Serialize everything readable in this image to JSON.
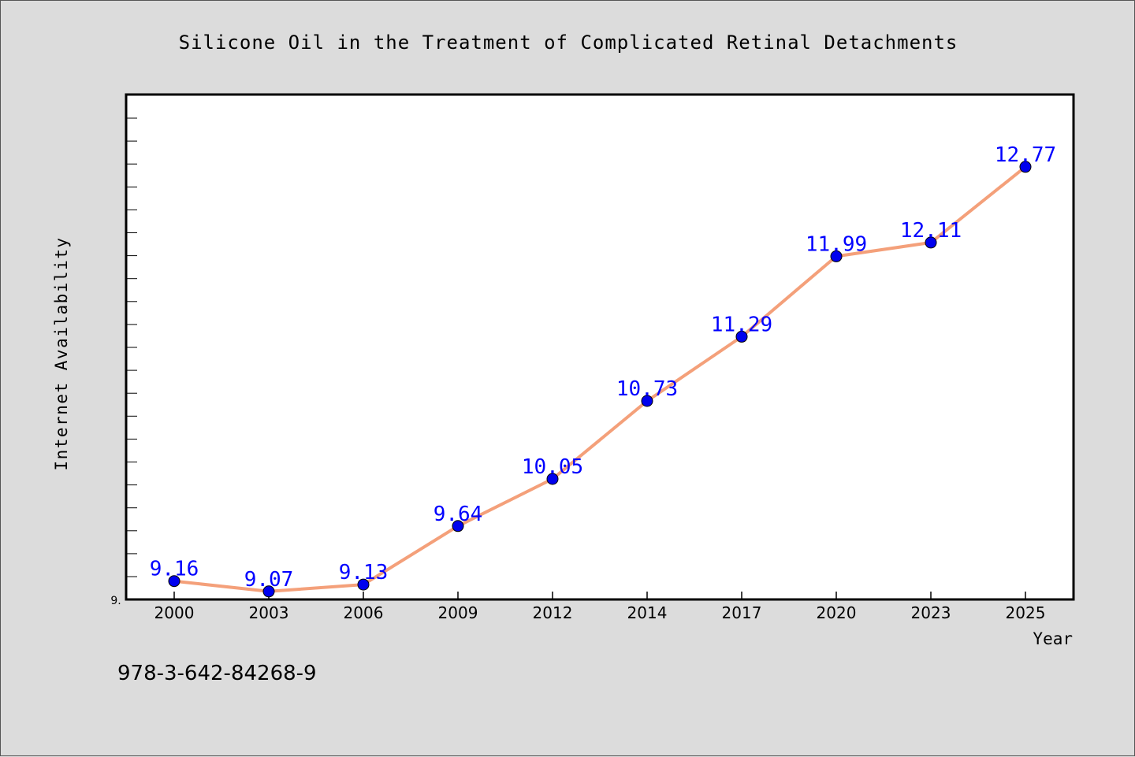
{
  "chart_data": {
    "type": "line",
    "title": "Silicone Oil in the Treatment of Complicated Retinal Detachments",
    "xlabel": "Year",
    "ylabel": "Internet Availability",
    "y_tick_label": "9.",
    "categories": [
      "2000",
      "2003",
      "2006",
      "2009",
      "2012",
      "2014",
      "2017",
      "2020",
      "2023",
      "2025"
    ],
    "series": [
      {
        "values": [
          9.16,
          9.07,
          9.13,
          9.64,
          10.05,
          10.73,
          11.29,
          11.99,
          12.11,
          12.77
        ],
        "labels": [
          "9.16",
          "9.07",
          "9.13",
          "9.64",
          "10.05",
          "10.73",
          "11.29",
          "11.99",
          "12.11",
          "12.77"
        ]
      }
    ],
    "ylim": [
      9.0,
      13.4
    ],
    "grid": false,
    "legend": "none",
    "colors": {
      "line": "#f4a07a",
      "marker": "#0000ee",
      "label": "#0000ff",
      "background": "#dcdcdc",
      "plot_background": "#ffffff"
    }
  },
  "footer_text": "978-3-642-84268-9"
}
